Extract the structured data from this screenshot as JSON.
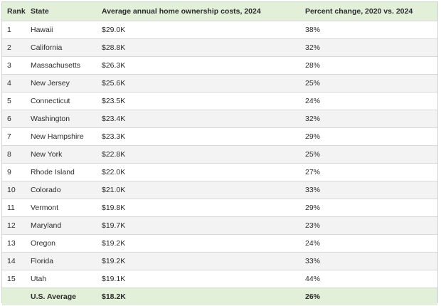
{
  "headers": {
    "rank": "Rank",
    "state": "State",
    "cost": "Average annual home ownership costs, 2024",
    "change": "Percent change, 2020 vs. 2024"
  },
  "rows": [
    {
      "rank": "1",
      "state": "Hawaii",
      "cost": "$29.0K",
      "change": "38%"
    },
    {
      "rank": "2",
      "state": "California",
      "cost": "$28.8K",
      "change": "32%"
    },
    {
      "rank": "3",
      "state": "Massachusetts",
      "cost": "$26.3K",
      "change": "28%"
    },
    {
      "rank": "4",
      "state": "New Jersey",
      "cost": "$25.6K",
      "change": "25%"
    },
    {
      "rank": "5",
      "state": "Connecticut",
      "cost": "$23.5K",
      "change": "24%"
    },
    {
      "rank": "6",
      "state": "Washington",
      "cost": "$23.4K",
      "change": "32%"
    },
    {
      "rank": "7",
      "state": "New Hampshire",
      "cost": "$23.3K",
      "change": "29%"
    },
    {
      "rank": "8",
      "state": "New York",
      "cost": "$22.8K",
      "change": "25%"
    },
    {
      "rank": "9",
      "state": "Rhode Island",
      "cost": "$22.0K",
      "change": "27%"
    },
    {
      "rank": "10",
      "state": "Colorado",
      "cost": "$21.0K",
      "change": "33%"
    },
    {
      "rank": "11",
      "state": "Vermont",
      "cost": "$19.8K",
      "change": "29%"
    },
    {
      "rank": "12",
      "state": "Maryland",
      "cost": "$19.7K",
      "change": "23%"
    },
    {
      "rank": "13",
      "state": "Oregon",
      "cost": "$19.2K",
      "change": "24%"
    },
    {
      "rank": "14",
      "state": "Florida",
      "cost": "$19.2K",
      "change": "33%"
    },
    {
      "rank": "15",
      "state": "Utah",
      "cost": "$19.1K",
      "change": "44%"
    }
  ],
  "total": {
    "rank": "",
    "state": "U.S. Average",
    "cost": "$18.2K",
    "change": "26%"
  },
  "colors": {
    "header_bg": "#e2efd9",
    "alt_row_bg": "#f3f3f3",
    "total_bg": "#e2efd9",
    "text": "#2b2b2b",
    "row_divider": "#d8d8d8"
  }
}
